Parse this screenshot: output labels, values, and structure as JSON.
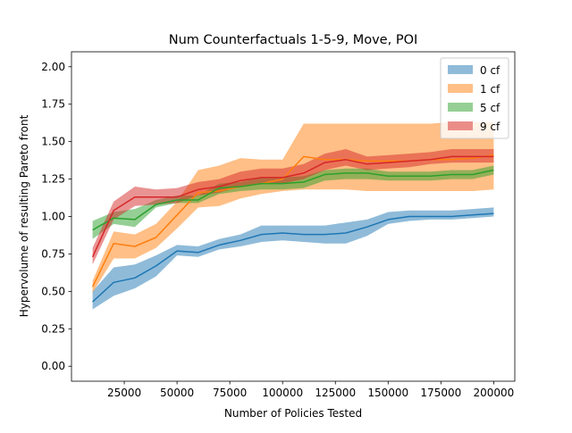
{
  "chart_data": {
    "type": "line",
    "title": "Num Counterfactuals 1-5-9, Move, POI",
    "xlabel": "Number of Policies Tested",
    "ylabel": "Hypervolume of resulting Pareto front",
    "xlim": [
      0,
      210000
    ],
    "ylim": [
      -0.1,
      2.1
    ],
    "x_ticks": [
      25000,
      50000,
      75000,
      100000,
      125000,
      150000,
      175000,
      200000
    ],
    "x_tick_labels": [
      "25000",
      "50000",
      "75000",
      "100000",
      "125000",
      "150000",
      "175000",
      "200000"
    ],
    "y_ticks": [
      0.0,
      0.25,
      0.5,
      0.75,
      1.0,
      1.25,
      1.5,
      1.75,
      2.0
    ],
    "y_tick_labels": [
      "0.00",
      "0.25",
      "0.50",
      "0.75",
      "1.00",
      "1.25",
      "1.50",
      "1.75",
      "2.00"
    ],
    "grid": false,
    "legend_position": "top-right",
    "x": [
      10000,
      20000,
      30000,
      40000,
      50000,
      60000,
      70000,
      80000,
      90000,
      100000,
      110000,
      120000,
      130000,
      140000,
      150000,
      160000,
      170000,
      180000,
      190000,
      200000
    ],
    "series": [
      {
        "name": "0 cf",
        "color": "#1f77b4",
        "mean": [
          0.43,
          0.56,
          0.59,
          0.67,
          0.77,
          0.76,
          0.81,
          0.84,
          0.88,
          0.89,
          0.88,
          0.88,
          0.89,
          0.93,
          0.98,
          1.0,
          1.0,
          1.0,
          1.01,
          1.02
        ],
        "lower": [
          0.38,
          0.47,
          0.52,
          0.6,
          0.74,
          0.73,
          0.78,
          0.8,
          0.83,
          0.84,
          0.83,
          0.82,
          0.82,
          0.87,
          0.95,
          0.97,
          0.98,
          0.98,
          0.99,
          1.0
        ],
        "upper": [
          0.5,
          0.66,
          0.68,
          0.74,
          0.81,
          0.8,
          0.85,
          0.88,
          0.94,
          0.94,
          0.94,
          0.94,
          0.96,
          0.98,
          1.03,
          1.04,
          1.04,
          1.04,
          1.05,
          1.06
        ]
      },
      {
        "name": "1 cf",
        "color": "#ff7f0e",
        "mean": [
          0.53,
          0.82,
          0.8,
          0.86,
          1.01,
          1.16,
          1.17,
          1.2,
          1.22,
          1.25,
          1.4,
          1.38,
          1.38,
          1.37,
          1.37,
          1.37,
          1.38,
          1.38,
          1.39,
          1.41
        ],
        "lower": [
          0.49,
          0.72,
          0.72,
          0.79,
          0.92,
          1.06,
          1.07,
          1.12,
          1.15,
          1.17,
          1.18,
          1.18,
          1.18,
          1.17,
          1.17,
          1.17,
          1.17,
          1.17,
          1.17,
          1.18
        ],
        "upper": [
          0.57,
          0.9,
          0.88,
          0.95,
          1.1,
          1.31,
          1.34,
          1.39,
          1.38,
          1.38,
          1.62,
          1.62,
          1.62,
          1.62,
          1.62,
          1.62,
          1.62,
          1.63,
          1.63,
          1.63
        ]
      },
      {
        "name": "5 cf",
        "color": "#2ca02c",
        "mean": [
          0.91,
          0.99,
          0.98,
          1.08,
          1.11,
          1.11,
          1.19,
          1.2,
          1.22,
          1.22,
          1.23,
          1.28,
          1.29,
          1.29,
          1.27,
          1.27,
          1.27,
          1.28,
          1.28,
          1.31
        ],
        "lower": [
          0.85,
          0.95,
          0.93,
          1.06,
          1.09,
          1.09,
          1.15,
          1.17,
          1.18,
          1.18,
          1.19,
          1.24,
          1.25,
          1.25,
          1.24,
          1.24,
          1.24,
          1.25,
          1.25,
          1.28
        ],
        "upper": [
          0.97,
          1.03,
          1.05,
          1.11,
          1.14,
          1.14,
          1.22,
          1.23,
          1.26,
          1.26,
          1.27,
          1.31,
          1.32,
          1.32,
          1.3,
          1.3,
          1.3,
          1.31,
          1.31,
          1.34
        ]
      },
      {
        "name": "9 cf",
        "color": "#d62728",
        "mean": [
          0.73,
          1.04,
          1.13,
          1.13,
          1.13,
          1.18,
          1.2,
          1.24,
          1.26,
          1.26,
          1.29,
          1.36,
          1.38,
          1.35,
          1.36,
          1.37,
          1.38,
          1.4,
          1.4,
          1.4
        ],
        "lower": [
          0.68,
          0.98,
          1.07,
          1.08,
          1.09,
          1.14,
          1.16,
          1.2,
          1.22,
          1.22,
          1.25,
          1.31,
          1.34,
          1.31,
          1.32,
          1.33,
          1.35,
          1.36,
          1.36,
          1.36
        ],
        "upper": [
          0.79,
          1.1,
          1.2,
          1.18,
          1.19,
          1.23,
          1.25,
          1.3,
          1.32,
          1.32,
          1.35,
          1.42,
          1.45,
          1.4,
          1.41,
          1.42,
          1.43,
          1.45,
          1.45,
          1.45
        ]
      }
    ]
  }
}
